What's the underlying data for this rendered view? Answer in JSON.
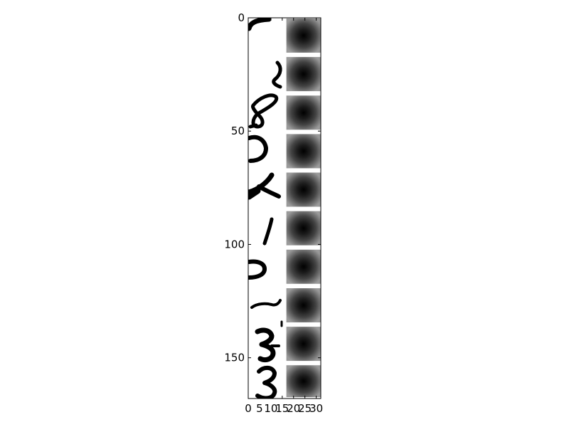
{
  "chart_data": {
    "type": "heatmap",
    "title": "",
    "xlabel": "",
    "ylabel": "",
    "xlim": [
      0,
      32
    ],
    "ylim": [
      168,
      0
    ],
    "y_inverted": true,
    "x_ticks": [
      0,
      5,
      10,
      15,
      20,
      25,
      30
    ],
    "y_ticks": [
      0,
      50,
      100,
      150
    ],
    "x_tick_labels": [
      "0",
      "5",
      "10",
      "15",
      "20",
      "25",
      "30"
    ],
    "y_tick_labels": [
      "0",
      "50",
      "100",
      "150"
    ],
    "colormap": "gray",
    "grid": false,
    "legend": "none",
    "description_panels": {
      "left": "strip of 10 handwritten character crops (binary black on white), columns 0–15",
      "right": "10 gaussian-like filter patches (dark centre, light edges), columns 16–32, separated by white gaps"
    },
    "rows": [
      {
        "y_start": 0,
        "y_end": 16,
        "glyph": "partial stroke"
      },
      {
        "y_start": 17,
        "y_end": 33,
        "glyph": "2"
      },
      {
        "y_start": 34,
        "y_end": 50,
        "glyph": "8"
      },
      {
        "y_start": 51,
        "y_end": 67,
        "glyph": "D"
      },
      {
        "y_start": 68,
        "y_end": 84,
        "glyph": "x"
      },
      {
        "y_start": 85,
        "y_end": 101,
        "glyph": "1"
      },
      {
        "y_start": 102,
        "y_end": 118,
        "glyph": "b"
      },
      {
        "y_start": 119,
        "y_end": 135,
        "glyph": "dash"
      },
      {
        "y_start": 136,
        "y_end": 152,
        "glyph": "3"
      },
      {
        "y_start": 153,
        "y_end": 168,
        "glyph": "3"
      }
    ]
  }
}
